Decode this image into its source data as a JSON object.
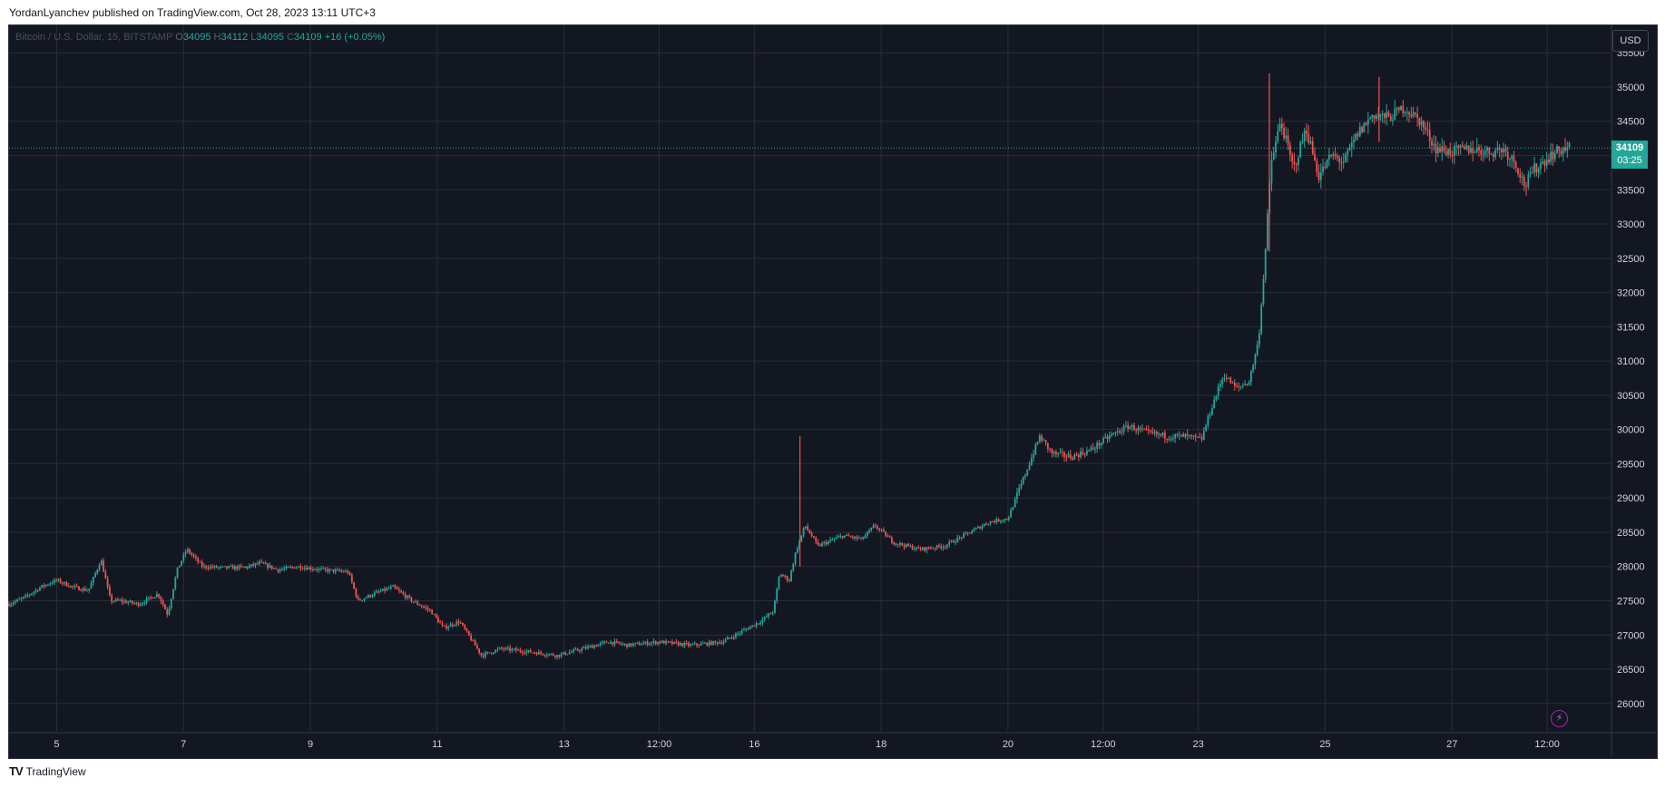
{
  "publisher": "YordanLyanchev published on TradingView.com, Oct 28, 2023 13:11 UTC+3",
  "legend": {
    "symbol": "Bitcoin / U.S. Dollar, 15, BITSTAMP",
    "open_key": "O",
    "open": "34095",
    "high_key": "H",
    "high": "34112",
    "low_key": "L",
    "low": "34095",
    "close_key": "C",
    "close": "34109",
    "change": "+16 (+0.05%)"
  },
  "currency": "USD",
  "last_price": {
    "price": "34109",
    "countdown": "03:25"
  },
  "footer_brand": "TradingView",
  "colors": {
    "background": "#131722",
    "grid": "#2a2e39",
    "up": "#26a69a",
    "down": "#ef5350",
    "axis_text": "#d1d4dc"
  },
  "chart_data": {
    "type": "candlestick",
    "title": "Bitcoin / U.S. Dollar, 15, BITSTAMP",
    "xlabel": "",
    "ylabel": "",
    "grid": true,
    "ylim": [
      25600,
      35900
    ],
    "y_ticks": [
      26000,
      26500,
      27000,
      27500,
      28000,
      28500,
      29000,
      29500,
      30000,
      30500,
      31000,
      31500,
      32000,
      32500,
      33000,
      33500,
      34000,
      34500,
      35000,
      35500
    ],
    "x_ticks": [
      {
        "label": "5",
        "day": 5.0
      },
      {
        "label": "7",
        "day": 7.0
      },
      {
        "label": "9",
        "day": 9.0
      },
      {
        "label": "11",
        "day": 11.0
      },
      {
        "label": "13",
        "day": 13.0
      },
      {
        "label": "12:00",
        "day": 14.5
      },
      {
        "label": "16",
        "day": 16.0
      },
      {
        "label": "18",
        "day": 18.0
      },
      {
        "label": "20",
        "day": 20.0
      },
      {
        "label": "12:00",
        "day": 21.5
      },
      {
        "label": "23",
        "day": 23.0
      },
      {
        "label": "25",
        "day": 25.0
      },
      {
        "label": "27",
        "day": 27.0
      },
      {
        "label": "12:00",
        "day": 28.5
      }
    ],
    "xlim_days": [
      4.25,
      29.5
    ],
    "price_path": [
      {
        "day": 4.25,
        "price": 27450
      },
      {
        "day": 4.5,
        "price": 27550
      },
      {
        "day": 4.75,
        "price": 27700
      },
      {
        "day": 5.0,
        "price": 27800
      },
      {
        "day": 5.25,
        "price": 27700
      },
      {
        "day": 5.5,
        "price": 27650
      },
      {
        "day": 5.7,
        "price": 28100
      },
      {
        "day": 5.85,
        "price": 27500
      },
      {
        "day": 6.0,
        "price": 27500
      },
      {
        "day": 6.3,
        "price": 27450
      },
      {
        "day": 6.6,
        "price": 27600
      },
      {
        "day": 6.75,
        "price": 27300
      },
      {
        "day": 6.9,
        "price": 27950
      },
      {
        "day": 7.05,
        "price": 28250
      },
      {
        "day": 7.3,
        "price": 28000
      },
      {
        "day": 7.6,
        "price": 27980
      },
      {
        "day": 8.0,
        "price": 27990
      },
      {
        "day": 8.2,
        "price": 28050
      },
      {
        "day": 8.5,
        "price": 27950
      },
      {
        "day": 8.8,
        "price": 28000
      },
      {
        "day": 9.2,
        "price": 27950
      },
      {
        "day": 9.6,
        "price": 27920
      },
      {
        "day": 9.75,
        "price": 27500
      },
      {
        "day": 10.0,
        "price": 27600
      },
      {
        "day": 10.3,
        "price": 27700
      },
      {
        "day": 10.6,
        "price": 27500
      },
      {
        "day": 10.9,
        "price": 27350
      },
      {
        "day": 11.1,
        "price": 27100
      },
      {
        "day": 11.35,
        "price": 27200
      },
      {
        "day": 11.7,
        "price": 26700
      },
      {
        "day": 12.0,
        "price": 26800
      },
      {
        "day": 12.5,
        "price": 26750
      },
      {
        "day": 12.9,
        "price": 26700
      },
      {
        "day": 13.3,
        "price": 26800
      },
      {
        "day": 13.7,
        "price": 26900
      },
      {
        "day": 14.0,
        "price": 26850
      },
      {
        "day": 14.5,
        "price": 26900
      },
      {
        "day": 15.0,
        "price": 26850
      },
      {
        "day": 15.5,
        "price": 26900
      },
      {
        "day": 15.8,
        "price": 27050
      },
      {
        "day": 16.1,
        "price": 27200
      },
      {
        "day": 16.3,
        "price": 27350
      },
      {
        "day": 16.4,
        "price": 27900
      },
      {
        "day": 16.55,
        "price": 27800
      },
      {
        "day": 16.65,
        "price": 28200
      },
      {
        "day": 16.8,
        "price": 28600
      },
      {
        "day": 17.0,
        "price": 28300
      },
      {
        "day": 17.4,
        "price": 28450
      },
      {
        "day": 17.7,
        "price": 28400
      },
      {
        "day": 17.9,
        "price": 28600
      },
      {
        "day": 18.2,
        "price": 28350
      },
      {
        "day": 18.6,
        "price": 28250
      },
      {
        "day": 19.0,
        "price": 28300
      },
      {
        "day": 19.4,
        "price": 28500
      },
      {
        "day": 19.7,
        "price": 28650
      },
      {
        "day": 20.0,
        "price": 28700
      },
      {
        "day": 20.25,
        "price": 29300
      },
      {
        "day": 20.5,
        "price": 29900
      },
      {
        "day": 20.7,
        "price": 29650
      },
      {
        "day": 21.0,
        "price": 29600
      },
      {
        "day": 21.3,
        "price": 29700
      },
      {
        "day": 21.6,
        "price": 29900
      },
      {
        "day": 21.9,
        "price": 30050
      },
      {
        "day": 22.2,
        "price": 29950
      },
      {
        "day": 22.5,
        "price": 29900
      },
      {
        "day": 22.8,
        "price": 29900
      },
      {
        "day": 23.05,
        "price": 29850
      },
      {
        "day": 23.2,
        "price": 30300
      },
      {
        "day": 23.4,
        "price": 30800
      },
      {
        "day": 23.6,
        "price": 30600
      },
      {
        "day": 23.8,
        "price": 30700
      },
      {
        "day": 23.95,
        "price": 31300
      },
      {
        "day": 24.05,
        "price": 32500
      },
      {
        "day": 24.15,
        "price": 33900
      },
      {
        "day": 24.3,
        "price": 34500
      },
      {
        "day": 24.5,
        "price": 33800
      },
      {
        "day": 24.7,
        "price": 34400
      },
      {
        "day": 24.9,
        "price": 33700
      },
      {
        "day": 25.1,
        "price": 34000
      },
      {
        "day": 25.3,
        "price": 33900
      },
      {
        "day": 25.5,
        "price": 34300
      },
      {
        "day": 25.75,
        "price": 34600
      },
      {
        "day": 26.0,
        "price": 34550
      },
      {
        "day": 26.25,
        "price": 34700
      },
      {
        "day": 26.5,
        "price": 34500
      },
      {
        "day": 26.75,
        "price": 34100
      },
      {
        "day": 27.0,
        "price": 34050
      },
      {
        "day": 27.3,
        "price": 34100
      },
      {
        "day": 27.6,
        "price": 34050
      },
      {
        "day": 27.8,
        "price": 34100
      },
      {
        "day": 28.0,
        "price": 33900
      },
      {
        "day": 28.15,
        "price": 33550
      },
      {
        "day": 28.3,
        "price": 33800
      },
      {
        "day": 28.55,
        "price": 34000
      },
      {
        "day": 28.75,
        "price": 34100
      },
      {
        "day": 28.85,
        "price": 34109
      }
    ],
    "spikes": [
      {
        "day": 16.72,
        "high": 29900,
        "low": 28000
      },
      {
        "day": 24.12,
        "high": 35200,
        "low": 32600
      },
      {
        "day": 25.85,
        "high": 35150,
        "low": 34200
      }
    ],
    "last_price_line": 34109
  }
}
